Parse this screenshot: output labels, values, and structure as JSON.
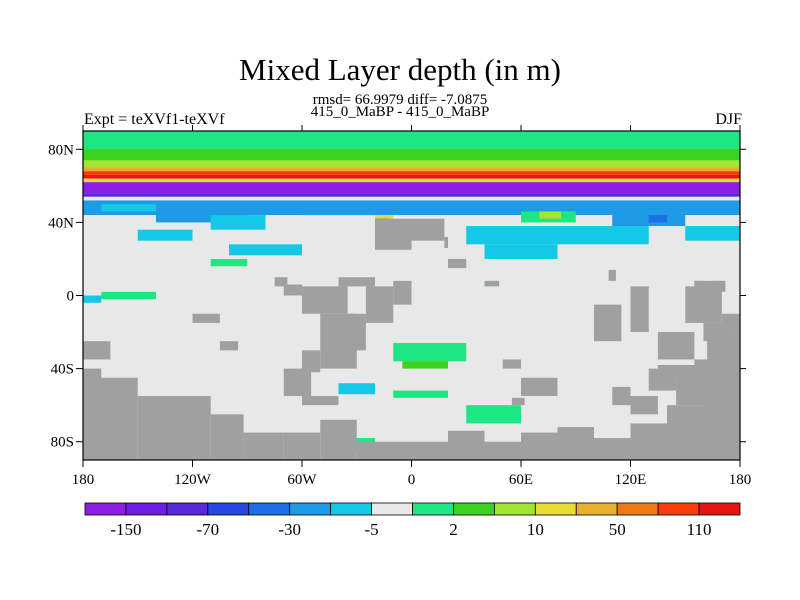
{
  "chart_data": {
    "type": "heatmap",
    "title": "Mixed Layer depth (in m)",
    "subtitle_line1": "rmsd= 66.9979 diff= -7.0875",
    "subtitle_line2": "415_0_MaBP - 415_0_MaBP",
    "left_label": "Expt = teXVf1-teXVf",
    "right_label": "DJF",
    "projection": "cylindrical-equidistant",
    "xlim": [
      -180,
      180
    ],
    "ylim": [
      -90,
      90
    ],
    "x_ticks": [
      {
        "value": -180,
        "label": "180"
      },
      {
        "value": -120,
        "label": "120W"
      },
      {
        "value": -60,
        "label": "60W"
      },
      {
        "value": 0,
        "label": "0"
      },
      {
        "value": 60,
        "label": "60E"
      },
      {
        "value": 120,
        "label": "120E"
      },
      {
        "value": 180,
        "label": "180"
      }
    ],
    "y_ticks": [
      {
        "value": 80,
        "label": "80N"
      },
      {
        "value": 40,
        "label": "40N"
      },
      {
        "value": 0,
        "label": "0"
      },
      {
        "value": -40,
        "label": "40S"
      },
      {
        "value": -80,
        "label": "80S"
      }
    ],
    "land_color": "#a0a0a0",
    "missing_color": "#e8e8e8",
    "colorbar": {
      "colors": [
        "#8c1ee6",
        "#6e1ee6",
        "#5a28dc",
        "#2846e6",
        "#1e6ee6",
        "#1e9ae6",
        "#14c8e6",
        "#e8e8e8",
        "#1ee682",
        "#3cd21e",
        "#a0e632",
        "#e6dc32",
        "#e6af2d",
        "#f07814",
        "#fa3c0a",
        "#e61414"
      ],
      "labels": [
        {
          "after_box": 1,
          "text": "-150"
        },
        {
          "after_box": 3,
          "text": "-70"
        },
        {
          "after_box": 5,
          "text": "-30"
        },
        {
          "after_box": 7,
          "text": "-5"
        },
        {
          "after_box": 9,
          "text": "2"
        },
        {
          "after_box": 11,
          "text": "10"
        },
        {
          "after_box": 13,
          "text": "50"
        },
        {
          "after_box": 15,
          "text": "110"
        }
      ]
    },
    "bands": [
      {
        "lat": [
          70,
          90
        ],
        "lon": [
          -180,
          180
        ],
        "color": "#1ee682"
      },
      {
        "lat": [
          74,
          80
        ],
        "lon": [
          -180,
          180
        ],
        "color": "#3cd21e"
      },
      {
        "lat": [
          70,
          74
        ],
        "lon": [
          -180,
          180
        ],
        "color": "#a0e632"
      },
      {
        "lat": [
          68,
          70
        ],
        "lon": [
          -180,
          180
        ],
        "color": "#e6af2d"
      },
      {
        "lat": [
          66,
          68
        ],
        "lon": [
          -180,
          180
        ],
        "color": "#fa3c0a"
      },
      {
        "lat": [
          64,
          66
        ],
        "lon": [
          -180,
          180
        ],
        "color": "#e61414"
      },
      {
        "lat": [
          62,
          64
        ],
        "lon": [
          -180,
          180
        ],
        "color": "#e6dc32"
      },
      {
        "lat": [
          56,
          62
        ],
        "lon": [
          -180,
          180
        ],
        "color": "#8c1ee6"
      },
      {
        "lat": [
          54,
          56
        ],
        "lon": [
          -180,
          180
        ],
        "color": "#5a28dc"
      },
      {
        "lat": [
          52,
          54
        ],
        "lon": [
          -180,
          180
        ],
        "color": "#e8e8e8"
      },
      {
        "lat": [
          44,
          52
        ],
        "lon": [
          -180,
          180
        ],
        "color": "#1e9ae6"
      },
      {
        "lat": [
          30,
          44
        ],
        "lon": [
          -180,
          180
        ],
        "color": "#e8e8e8"
      }
    ],
    "patches": [
      {
        "lat": [
          46,
          50
        ],
        "lon": [
          -170,
          -140
        ],
        "color": "#14c8e6"
      },
      {
        "lat": [
          40,
          46
        ],
        "lon": [
          -140,
          -90
        ],
        "color": "#1e9ae6"
      },
      {
        "lat": [
          36,
          44
        ],
        "lon": [
          -110,
          -80
        ],
        "color": "#14c8e6"
      },
      {
        "lat": [
          30,
          36
        ],
        "lon": [
          -150,
          -120
        ],
        "color": "#14c8e6"
      },
      {
        "lat": [
          22,
          28
        ],
        "lon": [
          -100,
          -60
        ],
        "color": "#14c8e6"
      },
      {
        "lat": [
          44,
          50
        ],
        "lon": [
          -60,
          -10
        ],
        "color": "#1e9ae6"
      },
      {
        "lat": [
          36,
          44
        ],
        "lon": [
          -20,
          -10
        ],
        "color": "#e6dc32"
      },
      {
        "lat": [
          38,
          42
        ],
        "lon": [
          -20,
          -12
        ],
        "color": "#2846e6"
      },
      {
        "lat": [
          40,
          46
        ],
        "lon": [
          60,
          90
        ],
        "color": "#1ee682"
      },
      {
        "lat": [
          42,
          46
        ],
        "lon": [
          70,
          82
        ],
        "color": "#a0e632"
      },
      {
        "lat": [
          38,
          46
        ],
        "lon": [
          110,
          150
        ],
        "color": "#1e9ae6"
      },
      {
        "lat": [
          40,
          44
        ],
        "lon": [
          130,
          140
        ],
        "color": "#1e6ee6"
      },
      {
        "lat": [
          28,
          38
        ],
        "lon": [
          30,
          130
        ],
        "color": "#14c8e6"
      },
      {
        "lat": [
          20,
          28
        ],
        "lon": [
          40,
          80
        ],
        "color": "#14c8e6"
      },
      {
        "lat": [
          30,
          38
        ],
        "lon": [
          150,
          180
        ],
        "color": "#14c8e6"
      },
      {
        "lat": [
          -4,
          0
        ],
        "lon": [
          -180,
          -170
        ],
        "color": "#14c8e6"
      },
      {
        "lat": [
          -2,
          2
        ],
        "lon": [
          -170,
          -140
        ],
        "color": "#1ee682"
      },
      {
        "lat": [
          16,
          20
        ],
        "lon": [
          -110,
          -90
        ],
        "color": "#1ee682"
      },
      {
        "lat": [
          -36,
          -26
        ],
        "lon": [
          -10,
          30
        ],
        "color": "#1ee682"
      },
      {
        "lat": [
          -40,
          -36
        ],
        "lon": [
          -5,
          20
        ],
        "color": "#3cd21e"
      },
      {
        "lat": [
          -54,
          -48
        ],
        "lon": [
          -40,
          -20
        ],
        "color": "#14c8e6"
      },
      {
        "lat": [
          -56,
          -52
        ],
        "lon": [
          -10,
          20
        ],
        "color": "#1ee682"
      },
      {
        "lat": [
          -70,
          -60
        ],
        "lon": [
          30,
          60
        ],
        "color": "#1ee682"
      },
      {
        "lat": [
          -86,
          -78
        ],
        "lon": [
          -40,
          -20
        ],
        "color": "#1ee682"
      }
    ],
    "land": [
      {
        "lat": [
          25,
          42
        ],
        "lon": [
          -20,
          0
        ]
      },
      {
        "lat": [
          30,
          42
        ],
        "lon": [
          0,
          18
        ]
      },
      {
        "lat": [
          26,
          32
        ],
        "lon": [
          18,
          20
        ]
      },
      {
        "lat": [
          -15,
          5
        ],
        "lon": [
          -25,
          -10
        ]
      },
      {
        "lat": [
          -5,
          8
        ],
        "lon": [
          -10,
          0
        ]
      },
      {
        "lat": [
          -30,
          -10
        ],
        "lon": [
          -35,
          -25
        ]
      },
      {
        "lat": [
          -60,
          -55
        ],
        "lon": [
          -60,
          -40
        ]
      },
      {
        "lat": [
          5,
          10
        ],
        "lon": [
          -40,
          -20
        ]
      },
      {
        "lat": [
          -20,
          5
        ],
        "lon": [
          120,
          130
        ]
      },
      {
        "lat": [
          -15,
          5
        ],
        "lon": [
          150,
          170
        ]
      },
      {
        "lat": [
          -25,
          -15
        ],
        "lon": [
          160,
          175
        ]
      },
      {
        "lat": [
          -35,
          -25
        ],
        "lon": [
          -180,
          -165
        ]
      },
      {
        "lat": [
          -60,
          -40
        ],
        "lon": [
          -180,
          -170
        ]
      },
      {
        "lat": [
          -90,
          -45
        ],
        "lon": [
          -180,
          -150
        ]
      },
      {
        "lat": [
          -90,
          -55
        ],
        "lon": [
          -150,
          -110
        ]
      },
      {
        "lat": [
          -90,
          -65
        ],
        "lon": [
          -110,
          -92
        ]
      },
      {
        "lat": [
          -90,
          -75
        ],
        "lon": [
          -92,
          -70
        ]
      },
      {
        "lat": [
          -90,
          -75
        ],
        "lon": [
          -70,
          -50
        ]
      },
      {
        "lat": [
          -90,
          -68
        ],
        "lon": [
          -50,
          -30
        ]
      },
      {
        "lat": [
          -90,
          -80
        ],
        "lon": [
          -30,
          0
        ]
      },
      {
        "lat": [
          -90,
          -80
        ],
        "lon": [
          0,
          20
        ]
      },
      {
        "lat": [
          -90,
          -74
        ],
        "lon": [
          20,
          40
        ]
      },
      {
        "lat": [
          -90,
          -80
        ],
        "lon": [
          40,
          60
        ]
      },
      {
        "lat": [
          -90,
          -75
        ],
        "lon": [
          60,
          80
        ]
      },
      {
        "lat": [
          -90,
          -72
        ],
        "lon": [
          80,
          100
        ]
      },
      {
        "lat": [
          -90,
          -78
        ],
        "lon": [
          100,
          120
        ]
      },
      {
        "lat": [
          -90,
          -70
        ],
        "lon": [
          120,
          140
        ]
      },
      {
        "lat": [
          -90,
          -60
        ],
        "lon": [
          140,
          160
        ]
      },
      {
        "lat": [
          -90,
          -50
        ],
        "lon": [
          160,
          180
        ]
      },
      {
        "lat": [
          -60,
          -40
        ],
        "lon": [
          145,
          180
        ]
      },
      {
        "lat": [
          -50,
          -35
        ],
        "lon": [
          155,
          180
        ]
      },
      {
        "lat": [
          -40,
          -20
        ],
        "lon": [
          162,
          180
        ]
      },
      {
        "lat": [
          -20,
          -10
        ],
        "lon": [
          170,
          180
        ]
      },
      {
        "lat": [
          -52,
          -40
        ],
        "lon": [
          130,
          145
        ]
      },
      {
        "lat": [
          -45,
          -38
        ],
        "lon": [
          135,
          160
        ]
      },
      {
        "lat": [
          -35,
          -20
        ],
        "lon": [
          135,
          155
        ]
      },
      {
        "lat": [
          -10,
          8
        ],
        "lon": [
          155,
          170
        ]
      },
      {
        "lat": [
          0,
          8
        ],
        "lon": [
          155,
          160
        ]
      },
      {
        "lat": [
          2,
          8
        ],
        "lon": [
          165,
          172
        ]
      },
      {
        "lat": [
          -25,
          -5
        ],
        "lon": [
          100,
          115
        ]
      },
      {
        "lat": [
          -60,
          -50
        ],
        "lon": [
          110,
          120
        ]
      },
      {
        "lat": [
          -15,
          -10
        ],
        "lon": [
          -120,
          -105
        ]
      },
      {
        "lat": [
          -30,
          -25
        ],
        "lon": [
          -105,
          -95
        ]
      },
      {
        "lat": [
          -55,
          -45
        ],
        "lon": [
          60,
          80
        ]
      },
      {
        "lat": [
          -40,
          -35
        ],
        "lon": [
          50,
          60
        ]
      },
      {
        "lat": [
          -65,
          -55
        ],
        "lon": [
          120,
          135
        ]
      },
      {
        "lat": [
          -10,
          5
        ],
        "lon": [
          -60,
          -35
        ]
      },
      {
        "lat": [
          -40,
          -10
        ],
        "lon": [
          -50,
          -30
        ]
      },
      {
        "lat": [
          -55,
          -40
        ],
        "lon": [
          -70,
          -55
        ]
      },
      {
        "lat": [
          -42,
          -30
        ],
        "lon": [
          -60,
          -50
        ]
      },
      {
        "lat": [
          0,
          6
        ],
        "lon": [
          -70,
          -60
        ]
      },
      {
        "lat": [
          5,
          10
        ],
        "lon": [
          -75,
          -68
        ]
      },
      {
        "lat": [
          15,
          20
        ],
        "lon": [
          20,
          30
        ]
      },
      {
        "lat": [
          5,
          8
        ],
        "lon": [
          40,
          48
        ]
      },
      {
        "lat": [
          8,
          14
        ],
        "lon": [
          108,
          112
        ]
      },
      {
        "lat": [
          -60,
          -56
        ],
        "lon": [
          55,
          62
        ]
      }
    ]
  }
}
